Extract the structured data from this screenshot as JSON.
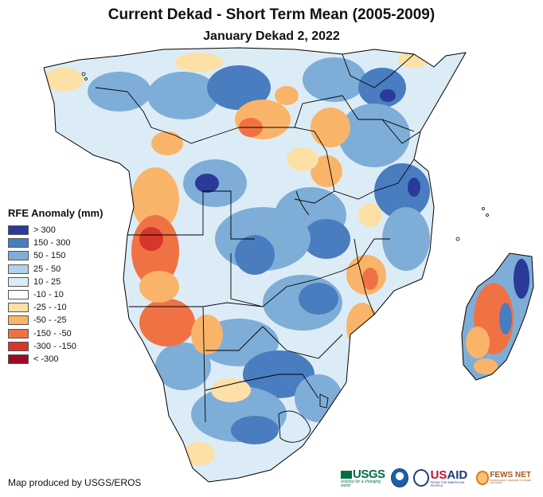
{
  "header": {
    "title": "Current Dekad - Short Term Mean (2005-2009)",
    "subtitle": "January Dekad 2, 2022"
  },
  "legend": {
    "title": "RFE Anomaly (mm)",
    "items": [
      {
        "label": "> 300",
        "color": "#2a3a98"
      },
      {
        "label": "150 - 300",
        "color": "#4a7cc0"
      },
      {
        "label": "50 - 150",
        "color": "#7eaed8"
      },
      {
        "label": "25 - 50",
        "color": "#b0d2ea"
      },
      {
        "label": "10 - 25",
        "color": "#dcecf6"
      },
      {
        "label": "-10 - 10",
        "color": "#ffffff"
      },
      {
        "label": "-25 - -10",
        "color": "#fce0a6"
      },
      {
        "label": "-50 - -25",
        "color": "#f9b46a"
      },
      {
        "label": "-150 - -50",
        "color": "#f07244"
      },
      {
        "label": "-300 - -150",
        "color": "#d8362a"
      },
      {
        "label": "< -300",
        "color": "#9e0a22"
      }
    ]
  },
  "map": {
    "region": "Southern Africa",
    "variable": "RFE Anomaly (mm)"
  },
  "footer": {
    "credit": "Map produced by USGS/EROS",
    "logos": {
      "usgs": {
        "name": "USGS",
        "tagline": "science for a changing world"
      },
      "noaa": {
        "name": "NOAA"
      },
      "usaid": {
        "name_prefix": "US",
        "name_suffix": "AID",
        "tagline": "FROM THE AMERICAN PEOPLE"
      },
      "fews": {
        "name": "FEWS NET",
        "tagline": "FAMINE EARLY WARNING SYSTEMS NETWORK"
      }
    }
  },
  "colors": {
    "border": "#000000",
    "base": "#dcecf6"
  }
}
